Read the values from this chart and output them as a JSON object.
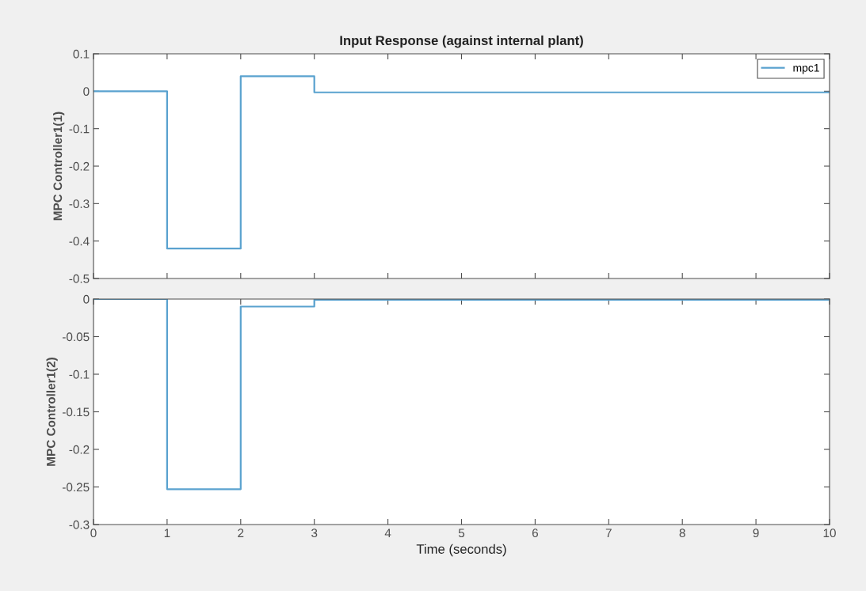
{
  "chart_data": [
    {
      "type": "step",
      "title": "Input Response (against internal plant)",
      "ylabel": "MPC Controller1(1)",
      "x": [
        0,
        1,
        2,
        3,
        10
      ],
      "series": [
        {
          "name": "mpc1",
          "color": "#5aa2cf",
          "values": [
            0,
            -0.42,
            0.04,
            -0.003,
            -0.003
          ]
        }
      ],
      "xlim": [
        0,
        10
      ],
      "xticks": [
        0,
        1,
        2,
        3,
        4,
        5,
        6,
        7,
        8,
        9,
        10
      ],
      "ylim": [
        -0.5,
        0.1
      ],
      "yticks": [
        -0.5,
        -0.4,
        -0.3,
        -0.2,
        -0.1,
        0,
        0.1
      ],
      "tick_labels": "y",
      "legend": "top right",
      "grid": false
    },
    {
      "type": "step",
      "ylabel": "MPC Controller1(2)",
      "xlabel": "Time (seconds)",
      "x": [
        0,
        1,
        2,
        3,
        10
      ],
      "series": [
        {
          "color": "#5aa2cf",
          "values": [
            0,
            -0.253,
            -0.01,
            -0.001,
            -0.001
          ]
        }
      ],
      "xlim": [
        0,
        10
      ],
      "xticks": [
        0,
        1,
        2,
        3,
        4,
        5,
        6,
        7,
        8,
        9,
        10
      ],
      "ylim": [
        -0.3,
        0
      ],
      "yticks": [
        -0.3,
        -0.25,
        -0.2,
        -0.15,
        -0.1,
        -0.05,
        0
      ],
      "grid": false
    }
  ]
}
